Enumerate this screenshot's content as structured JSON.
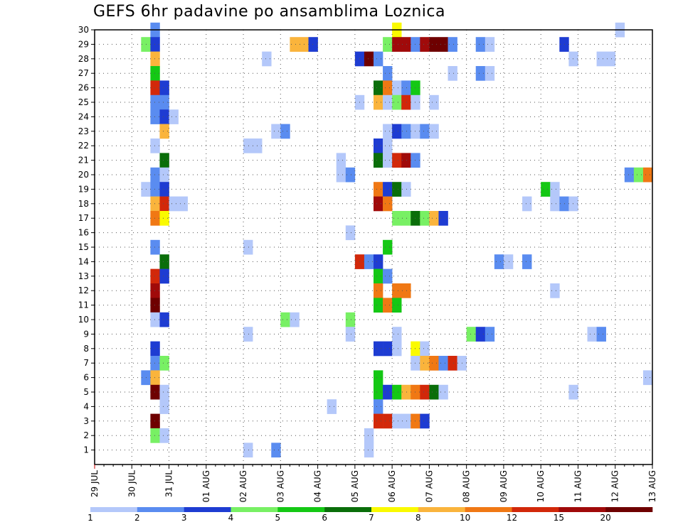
{
  "chart_data": {
    "type": "heatmap",
    "title": "GEFS 6hr padavine po ansamblima Loznica",
    "xlabel": "",
    "ylabel": "",
    "x_tick_labels": [
      "29 JUL",
      "30 JUL",
      "31 JUL",
      "01 AUG",
      "02 AUG",
      "03 AUG",
      "04 AUG",
      "05 AUG",
      "06 AUG",
      "07 AUG",
      "08 AUG",
      "09 AUG",
      "10 AUG",
      "11 AUG",
      "12 AUG",
      "13 AUG"
    ],
    "y_tick_labels": [
      "1",
      "2",
      "3",
      "4",
      "5",
      "6",
      "7",
      "8",
      "9",
      "10",
      "11",
      "12",
      "13",
      "14",
      "15",
      "16",
      "17",
      "18",
      "19",
      "20",
      "21",
      "22",
      "23",
      "24",
      "25",
      "26",
      "27",
      "28",
      "29",
      "30"
    ],
    "ylim": [
      0,
      30
    ],
    "time_steps_per_day": 4,
    "grid": "dotted",
    "colorbar": {
      "boundaries": [
        "1",
        "2",
        "3",
        "4",
        "5",
        "6",
        "7",
        "8",
        "10",
        "12",
        "15",
        "20"
      ],
      "colors": [
        "#b4c8fa",
        "#5a8cf0",
        "#1e3cd2",
        "#78f064",
        "#14c814",
        "#0a6e0a",
        "#fafa00",
        "#fab43c",
        "#f07814",
        "#d2280a",
        "#a00a0a",
        "#6e0000"
      ]
    },
    "cells": [
      {
        "member": 30,
        "step": 6,
        "bin": 1
      },
      {
        "member": 30,
        "step": 32,
        "bin": 6
      },
      {
        "member": 30,
        "step": 56,
        "bin": 0
      },
      {
        "member": 29,
        "step": 5,
        "bin": 3
      },
      {
        "member": 29,
        "step": 6,
        "bin": 2
      },
      {
        "member": 29,
        "step": 21,
        "bin": 7
      },
      {
        "member": 29,
        "step": 22,
        "bin": 7
      },
      {
        "member": 29,
        "step": 23,
        "bin": 2
      },
      {
        "member": 29,
        "step": 31,
        "bin": 3
      },
      {
        "member": 29,
        "step": 32,
        "bin": 10
      },
      {
        "member": 29,
        "step": 33,
        "bin": 10
      },
      {
        "member": 29,
        "step": 34,
        "bin": 1
      },
      {
        "member": 29,
        "step": 35,
        "bin": 10
      },
      {
        "member": 29,
        "step": 36,
        "bin": 11
      },
      {
        "member": 29,
        "step": 37,
        "bin": 11
      },
      {
        "member": 29,
        "step": 38,
        "bin": 1
      },
      {
        "member": 29,
        "step": 41,
        "bin": 1
      },
      {
        "member": 29,
        "step": 42,
        "bin": 0
      },
      {
        "member": 29,
        "step": 50,
        "bin": 2
      },
      {
        "member": 28,
        "step": 6,
        "bin": 7
      },
      {
        "member": 28,
        "step": 18,
        "bin": 0
      },
      {
        "member": 28,
        "step": 28,
        "bin": 2
      },
      {
        "member": 28,
        "step": 29,
        "bin": 11
      },
      {
        "member": 28,
        "step": 30,
        "bin": 1
      },
      {
        "member": 28,
        "step": 51,
        "bin": 0
      },
      {
        "member": 28,
        "step": 54,
        "bin": 0
      },
      {
        "member": 28,
        "step": 55,
        "bin": 0
      },
      {
        "member": 27,
        "step": 6,
        "bin": 4
      },
      {
        "member": 27,
        "step": 31,
        "bin": 1
      },
      {
        "member": 27,
        "step": 38,
        "bin": 0
      },
      {
        "member": 27,
        "step": 41,
        "bin": 1
      },
      {
        "member": 27,
        "step": 42,
        "bin": 0
      },
      {
        "member": 26,
        "step": 6,
        "bin": 9
      },
      {
        "member": 26,
        "step": 7,
        "bin": 2
      },
      {
        "member": 26,
        "step": 30,
        "bin": 5
      },
      {
        "member": 26,
        "step": 31,
        "bin": 8
      },
      {
        "member": 26,
        "step": 32,
        "bin": 0
      },
      {
        "member": 26,
        "step": 33,
        "bin": 1
      },
      {
        "member": 26,
        "step": 34,
        "bin": 4
      },
      {
        "member": 25,
        "step": 6,
        "bin": 1
      },
      {
        "member": 25,
        "step": 7,
        "bin": 1
      },
      {
        "member": 25,
        "step": 28,
        "bin": 0
      },
      {
        "member": 25,
        "step": 30,
        "bin": 7
      },
      {
        "member": 25,
        "step": 31,
        "bin": 0
      },
      {
        "member": 25,
        "step": 32,
        "bin": 3
      },
      {
        "member": 25,
        "step": 33,
        "bin": 9
      },
      {
        "member": 25,
        "step": 34,
        "bin": 0
      },
      {
        "member": 25,
        "step": 36,
        "bin": 0
      },
      {
        "member": 24,
        "step": 6,
        "bin": 1
      },
      {
        "member": 24,
        "step": 7,
        "bin": 2
      },
      {
        "member": 24,
        "step": 8,
        "bin": 0
      },
      {
        "member": 23,
        "step": 7,
        "bin": 7
      },
      {
        "member": 23,
        "step": 19,
        "bin": 0
      },
      {
        "member": 23,
        "step": 20,
        "bin": 1
      },
      {
        "member": 23,
        "step": 31,
        "bin": 0
      },
      {
        "member": 23,
        "step": 32,
        "bin": 2
      },
      {
        "member": 23,
        "step": 33,
        "bin": 1
      },
      {
        "member": 23,
        "step": 34,
        "bin": 0
      },
      {
        "member": 23,
        "step": 35,
        "bin": 1
      },
      {
        "member": 23,
        "step": 36,
        "bin": 0
      },
      {
        "member": 22,
        "step": 6,
        "bin": 0
      },
      {
        "member": 22,
        "step": 16,
        "bin": 0
      },
      {
        "member": 22,
        "step": 17,
        "bin": 0
      },
      {
        "member": 22,
        "step": 30,
        "bin": 2
      },
      {
        "member": 22,
        "step": 31,
        "bin": 0
      },
      {
        "member": 21,
        "step": 7,
        "bin": 5
      },
      {
        "member": 21,
        "step": 26,
        "bin": 0
      },
      {
        "member": 21,
        "step": 30,
        "bin": 5
      },
      {
        "member": 21,
        "step": 31,
        "bin": 0
      },
      {
        "member": 21,
        "step": 32,
        "bin": 9
      },
      {
        "member": 21,
        "step": 33,
        "bin": 10
      },
      {
        "member": 21,
        "step": 34,
        "bin": 1
      },
      {
        "member": 20,
        "step": 6,
        "bin": 1
      },
      {
        "member": 20,
        "step": 7,
        "bin": 0
      },
      {
        "member": 20,
        "step": 26,
        "bin": 0
      },
      {
        "member": 20,
        "step": 27,
        "bin": 1
      },
      {
        "member": 20,
        "step": 57,
        "bin": 1
      },
      {
        "member": 20,
        "step": 58,
        "bin": 3
      },
      {
        "member": 20,
        "step": 59,
        "bin": 8
      },
      {
        "member": 19,
        "step": 5,
        "bin": 0
      },
      {
        "member": 19,
        "step": 6,
        "bin": 1
      },
      {
        "member": 19,
        "step": 7,
        "bin": 2
      },
      {
        "member": 19,
        "step": 30,
        "bin": 8
      },
      {
        "member": 19,
        "step": 31,
        "bin": 2
      },
      {
        "member": 19,
        "step": 32,
        "bin": 5
      },
      {
        "member": 19,
        "step": 33,
        "bin": 0
      },
      {
        "member": 19,
        "step": 48,
        "bin": 4
      },
      {
        "member": 19,
        "step": 49,
        "bin": 0
      },
      {
        "member": 18,
        "step": 6,
        "bin": 7
      },
      {
        "member": 18,
        "step": 7,
        "bin": 9
      },
      {
        "member": 18,
        "step": 8,
        "bin": 0
      },
      {
        "member": 18,
        "step": 9,
        "bin": 0
      },
      {
        "member": 18,
        "step": 30,
        "bin": 10
      },
      {
        "member": 18,
        "step": 31,
        "bin": 8
      },
      {
        "member": 18,
        "step": 46,
        "bin": 0
      },
      {
        "member": 18,
        "step": 49,
        "bin": 0
      },
      {
        "member": 18,
        "step": 50,
        "bin": 1
      },
      {
        "member": 18,
        "step": 51,
        "bin": 0
      },
      {
        "member": 17,
        "step": 6,
        "bin": 8
      },
      {
        "member": 17,
        "step": 7,
        "bin": 6
      },
      {
        "member": 17,
        "step": 32,
        "bin": 3
      },
      {
        "member": 17,
        "step": 33,
        "bin": 3
      },
      {
        "member": 17,
        "step": 34,
        "bin": 5
      },
      {
        "member": 17,
        "step": 35,
        "bin": 3
      },
      {
        "member": 17,
        "step": 36,
        "bin": 7
      },
      {
        "member": 17,
        "step": 37,
        "bin": 2
      },
      {
        "member": 16,
        "step": 27,
        "bin": 0
      },
      {
        "member": 15,
        "step": 6,
        "bin": 1
      },
      {
        "member": 15,
        "step": 16,
        "bin": 0
      },
      {
        "member": 15,
        "step": 31,
        "bin": 4
      },
      {
        "member": 14,
        "step": 7,
        "bin": 5
      },
      {
        "member": 14,
        "step": 28,
        "bin": 9
      },
      {
        "member": 14,
        "step": 29,
        "bin": 1
      },
      {
        "member": 14,
        "step": 30,
        "bin": 2
      },
      {
        "member": 14,
        "step": 43,
        "bin": 1
      },
      {
        "member": 14,
        "step": 44,
        "bin": 0
      },
      {
        "member": 14,
        "step": 46,
        "bin": 1
      },
      {
        "member": 13,
        "step": 6,
        "bin": 9
      },
      {
        "member": 13,
        "step": 7,
        "bin": 2
      },
      {
        "member": 13,
        "step": 30,
        "bin": 4
      },
      {
        "member": 13,
        "step": 31,
        "bin": 1
      },
      {
        "member": 12,
        "step": 6,
        "bin": 10
      },
      {
        "member": 12,
        "step": 30,
        "bin": 8
      },
      {
        "member": 12,
        "step": 32,
        "bin": 8
      },
      {
        "member": 12,
        "step": 33,
        "bin": 8
      },
      {
        "member": 12,
        "step": 49,
        "bin": 0
      },
      {
        "member": 11,
        "step": 6,
        "bin": 11
      },
      {
        "member": 11,
        "step": 30,
        "bin": 4
      },
      {
        "member": 11,
        "step": 31,
        "bin": 8
      },
      {
        "member": 11,
        "step": 32,
        "bin": 4
      },
      {
        "member": 10,
        "step": 6,
        "bin": 0
      },
      {
        "member": 10,
        "step": 7,
        "bin": 2
      },
      {
        "member": 10,
        "step": 20,
        "bin": 3
      },
      {
        "member": 10,
        "step": 21,
        "bin": 0
      },
      {
        "member": 10,
        "step": 27,
        "bin": 3
      },
      {
        "member": 9,
        "step": 16,
        "bin": 0
      },
      {
        "member": 9,
        "step": 27,
        "bin": 0
      },
      {
        "member": 9,
        "step": 32,
        "bin": 0
      },
      {
        "member": 9,
        "step": 40,
        "bin": 3
      },
      {
        "member": 9,
        "step": 41,
        "bin": 2
      },
      {
        "member": 9,
        "step": 42,
        "bin": 1
      },
      {
        "member": 9,
        "step": 53,
        "bin": 0
      },
      {
        "member": 9,
        "step": 54,
        "bin": 1
      },
      {
        "member": 8,
        "step": 6,
        "bin": 2
      },
      {
        "member": 8,
        "step": 30,
        "bin": 2
      },
      {
        "member": 8,
        "step": 31,
        "bin": 2
      },
      {
        "member": 8,
        "step": 32,
        "bin": 0
      },
      {
        "member": 8,
        "step": 34,
        "bin": 6
      },
      {
        "member": 8,
        "step": 35,
        "bin": 0
      },
      {
        "member": 7,
        "step": 6,
        "bin": 1
      },
      {
        "member": 7,
        "step": 7,
        "bin": 3
      },
      {
        "member": 7,
        "step": 34,
        "bin": 0
      },
      {
        "member": 7,
        "step": 35,
        "bin": 7
      },
      {
        "member": 7,
        "step": 36,
        "bin": 8
      },
      {
        "member": 7,
        "step": 37,
        "bin": 1
      },
      {
        "member": 7,
        "step": 38,
        "bin": 9
      },
      {
        "member": 7,
        "step": 39,
        "bin": 0
      },
      {
        "member": 6,
        "step": 5,
        "bin": 1
      },
      {
        "member": 6,
        "step": 6,
        "bin": 7
      },
      {
        "member": 6,
        "step": 30,
        "bin": 4
      },
      {
        "member": 6,
        "step": 59,
        "bin": 0
      },
      {
        "member": 5,
        "step": 6,
        "bin": 11
      },
      {
        "member": 5,
        "step": 7,
        "bin": 0
      },
      {
        "member": 5,
        "step": 30,
        "bin": 4
      },
      {
        "member": 5,
        "step": 31,
        "bin": 2
      },
      {
        "member": 5,
        "step": 32,
        "bin": 4
      },
      {
        "member": 5,
        "step": 33,
        "bin": 7
      },
      {
        "member": 5,
        "step": 34,
        "bin": 8
      },
      {
        "member": 5,
        "step": 35,
        "bin": 9
      },
      {
        "member": 5,
        "step": 36,
        "bin": 5
      },
      {
        "member": 5,
        "step": 37,
        "bin": 0
      },
      {
        "member": 5,
        "step": 51,
        "bin": 0
      },
      {
        "member": 4,
        "step": 7,
        "bin": 0
      },
      {
        "member": 4,
        "step": 25,
        "bin": 0
      },
      {
        "member": 4,
        "step": 30,
        "bin": 1
      },
      {
        "member": 3,
        "step": 6,
        "bin": 11
      },
      {
        "member": 3,
        "step": 30,
        "bin": 9
      },
      {
        "member": 3,
        "step": 31,
        "bin": 9
      },
      {
        "member": 3,
        "step": 32,
        "bin": 0
      },
      {
        "member": 3,
        "step": 33,
        "bin": 0
      },
      {
        "member": 3,
        "step": 34,
        "bin": 8
      },
      {
        "member": 3,
        "step": 35,
        "bin": 2
      },
      {
        "member": 2,
        "step": 6,
        "bin": 3
      },
      {
        "member": 2,
        "step": 7,
        "bin": 0
      },
      {
        "member": 2,
        "step": 29,
        "bin": 0
      },
      {
        "member": 1,
        "step": 16,
        "bin": 0
      },
      {
        "member": 1,
        "step": 19,
        "bin": 1
      },
      {
        "member": 1,
        "step": 29,
        "bin": 0
      }
    ]
  }
}
